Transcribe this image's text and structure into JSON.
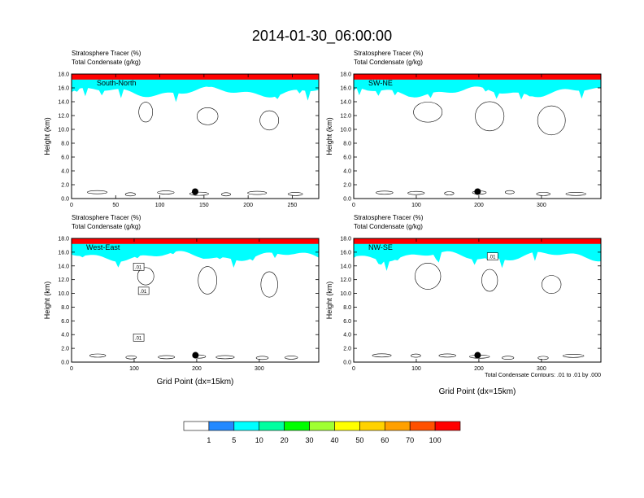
{
  "title": "2014-01-30_06:00:00",
  "panel_header": {
    "line1": "Stratosphere Tracer   (%)",
    "line2": "Total Condensate   (g/kg)"
  },
  "x_axis_title": "Grid Point (dx=15km)",
  "y_axis_title": "Height (km)",
  "contour_note": "Total Condensate Contours: .01 to .01 by .000",
  "colorbar": {
    "levels": [
      "1",
      "5",
      "10",
      "20",
      "30",
      "40",
      "50",
      "60",
      "70",
      "100"
    ],
    "colors": [
      "#ffffff",
      "#2389ff",
      "#00c8ff",
      "#00ffff",
      "#00ffa0",
      "#00ff00",
      "#a0ff32",
      "#ffff00",
      "#ffd200",
      "#ffa000",
      "#ff5000",
      "#ff0000"
    ]
  },
  "chart_data": [
    {
      "type": "heatmap",
      "panel": "South-North",
      "xlim": [
        0,
        280
      ],
      "ylim": [
        0,
        18
      ],
      "xticks": [
        "0",
        "50",
        "100",
        "150",
        "200",
        "250"
      ],
      "yticks": [
        "0.0",
        "2.0",
        "4.0",
        "6.0",
        "8.0",
        "10.0",
        "12.0",
        "14.0",
        "16.0",
        "18.0"
      ],
      "marker_x": 140,
      "contour_labels": []
    },
    {
      "type": "heatmap",
      "panel": "SW-NE",
      "xlim": [
        0,
        395
      ],
      "ylim": [
        0,
        18
      ],
      "xticks": [
        "0",
        "100",
        "200",
        "300"
      ],
      "yticks": [
        "0.0",
        "2.0",
        "4.0",
        "6.0",
        "8.0",
        "10.0",
        "12.0",
        "14.0",
        "16.0",
        "18.0"
      ],
      "marker_x": 198,
      "contour_labels": []
    },
    {
      "type": "heatmap",
      "panel": "West-East",
      "xlim": [
        0,
        395
      ],
      "ylim": [
        0,
        18
      ],
      "xticks": [
        "0",
        "100",
        "200",
        "300"
      ],
      "yticks": [
        "0.0",
        "2.0",
        "4.0",
        "6.0",
        "8.0",
        "10.0",
        "12.0",
        "14.0",
        "16.0",
        "18.0"
      ],
      "marker_x": 198,
      "contour_labels": [
        ".01",
        ".01",
        ".01"
      ]
    },
    {
      "type": "heatmap",
      "panel": "NW-SE",
      "xlim": [
        0,
        395
      ],
      "ylim": [
        0,
        18
      ],
      "xticks": [
        "0",
        "100",
        "200",
        "300"
      ],
      "yticks": [
        "0.0",
        "2.0",
        "4.0",
        "6.0",
        "8.0",
        "10.0",
        "12.0",
        "14.0",
        "16.0",
        "18.0"
      ],
      "marker_x": 198,
      "contour_labels": [
        ".01"
      ]
    }
  ]
}
